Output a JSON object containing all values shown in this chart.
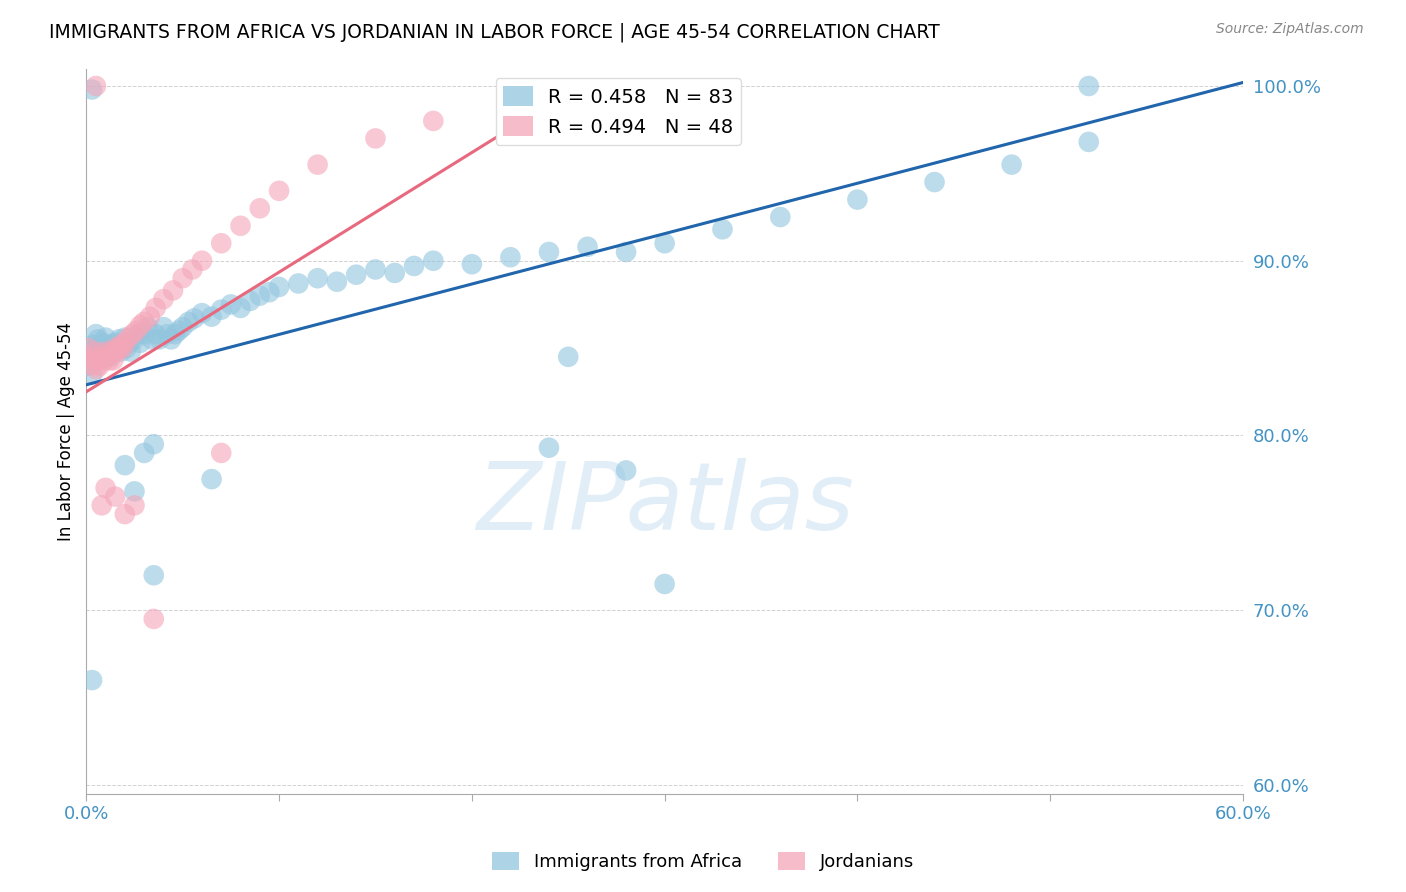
{
  "title": "IMMIGRANTS FROM AFRICA VS JORDANIAN IN LABOR FORCE | AGE 45-54 CORRELATION CHART",
  "source": "Source: ZipAtlas.com",
  "ylabel": "In Labor Force | Age 45-54",
  "watermark": "ZIPatlas",
  "blue_R": 0.458,
  "blue_N": 83,
  "pink_R": 0.494,
  "pink_N": 48,
  "blue_color": "#92c5de",
  "pink_color": "#f4a6b8",
  "blue_line_color": "#2166ac",
  "pink_line_color": "#e8697d",
  "axis_tick_color": "#4393c3",
  "legend_blue_label": "Immigrants from Africa",
  "legend_pink_label": "Jordanians",
  "xmin": 0.0,
  "xmax": 0.6,
  "ymin": 0.595,
  "ymax": 1.01,
  "yticks": [
    0.6,
    0.7,
    0.8,
    0.9,
    1.0
  ],
  "ytick_labels": [
    "60.0%",
    "70.0%",
    "80.0%",
    "90.0%",
    "100.0%"
  ],
  "xticks": [
    0.0,
    0.1,
    0.2,
    0.3,
    0.4,
    0.5,
    0.6
  ],
  "xtick_labels": [
    "0.0%",
    "",
    "",
    "",
    "",
    "",
    "60.0%"
  ],
  "blue_x": [
    0.001,
    0.002,
    0.003,
    0.004,
    0.005,
    0.005,
    0.006,
    0.007,
    0.008,
    0.008,
    0.009,
    0.01,
    0.011,
    0.012,
    0.013,
    0.014,
    0.015,
    0.016,
    0.017,
    0.018,
    0.019,
    0.02,
    0.021,
    0.022,
    0.023,
    0.025,
    0.027,
    0.028,
    0.03,
    0.032,
    0.034,
    0.036,
    0.038,
    0.04,
    0.042,
    0.044,
    0.046,
    0.048,
    0.05,
    0.053,
    0.056,
    0.06,
    0.065,
    0.07,
    0.075,
    0.08,
    0.085,
    0.09,
    0.095,
    0.1,
    0.11,
    0.12,
    0.13,
    0.14,
    0.15,
    0.16,
    0.17,
    0.18,
    0.2,
    0.22,
    0.24,
    0.26,
    0.28,
    0.3,
    0.33,
    0.36,
    0.4,
    0.44,
    0.48,
    0.52,
    0.003,
    0.02,
    0.025,
    0.03,
    0.035,
    0.24,
    0.28,
    0.3,
    0.52,
    0.003,
    0.25,
    0.035,
    0.065
  ],
  "blue_y": [
    0.84,
    0.848,
    0.835,
    0.852,
    0.858,
    0.85,
    0.855,
    0.85,
    0.852,
    0.848,
    0.853,
    0.856,
    0.85,
    0.845,
    0.852,
    0.848,
    0.853,
    0.85,
    0.855,
    0.848,
    0.852,
    0.856,
    0.85,
    0.853,
    0.848,
    0.855,
    0.858,
    0.853,
    0.858,
    0.862,
    0.855,
    0.858,
    0.855,
    0.862,
    0.858,
    0.855,
    0.858,
    0.86,
    0.862,
    0.865,
    0.867,
    0.87,
    0.868,
    0.872,
    0.875,
    0.873,
    0.877,
    0.88,
    0.882,
    0.885,
    0.887,
    0.89,
    0.888,
    0.892,
    0.895,
    0.893,
    0.897,
    0.9,
    0.898,
    0.902,
    0.905,
    0.908,
    0.905,
    0.91,
    0.918,
    0.925,
    0.935,
    0.945,
    0.955,
    0.968,
    0.66,
    0.783,
    0.768,
    0.79,
    0.795,
    0.793,
    0.78,
    0.715,
    1.0,
    0.998,
    0.845,
    0.72,
    0.775
  ],
  "pink_x": [
    0.001,
    0.002,
    0.003,
    0.004,
    0.005,
    0.005,
    0.006,
    0.007,
    0.008,
    0.009,
    0.01,
    0.011,
    0.012,
    0.013,
    0.014,
    0.015,
    0.016,
    0.017,
    0.018,
    0.019,
    0.02,
    0.022,
    0.024,
    0.026,
    0.028,
    0.03,
    0.033,
    0.036,
    0.04,
    0.045,
    0.05,
    0.055,
    0.06,
    0.07,
    0.08,
    0.09,
    0.1,
    0.12,
    0.15,
    0.18,
    0.008,
    0.01,
    0.015,
    0.02,
    0.025,
    0.005,
    0.035,
    0.07
  ],
  "pink_y": [
    0.85,
    0.845,
    0.84,
    0.843,
    0.838,
    0.848,
    0.843,
    0.84,
    0.845,
    0.843,
    0.848,
    0.845,
    0.843,
    0.848,
    0.843,
    0.85,
    0.848,
    0.85,
    0.852,
    0.85,
    0.853,
    0.856,
    0.858,
    0.86,
    0.863,
    0.865,
    0.868,
    0.873,
    0.878,
    0.883,
    0.89,
    0.895,
    0.9,
    0.91,
    0.92,
    0.93,
    0.94,
    0.955,
    0.97,
    0.98,
    0.76,
    0.77,
    0.765,
    0.755,
    0.76,
    1.0,
    0.695,
    0.79
  ],
  "blue_trend_x": [
    0.0,
    0.6
  ],
  "blue_trend_y": [
    0.829,
    1.002
  ],
  "pink_trend_x": [
    0.0,
    0.26
  ],
  "pink_trend_y": [
    0.825,
    1.003
  ]
}
